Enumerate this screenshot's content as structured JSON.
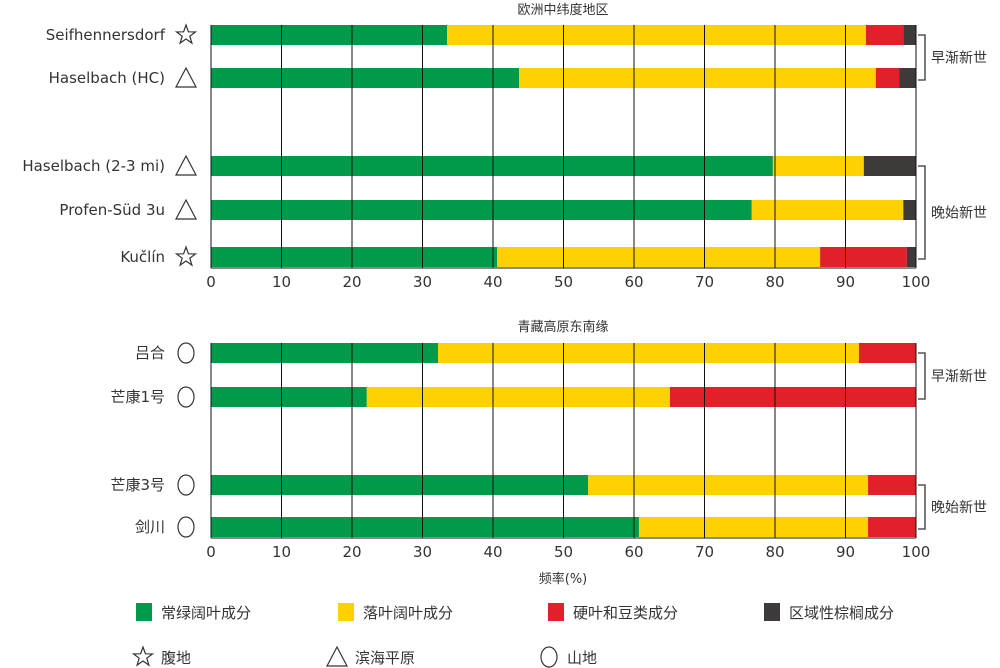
{
  "colors": {
    "evergreen": "#009a4a",
    "deciduous": "#ffd100",
    "sclerophyll": "#e3202a",
    "palm": "#3e3a39"
  },
  "chart_data": [
    {
      "type": "bar",
      "orientation": "horizontal",
      "stacked": true,
      "title": "欧洲中纬度地区",
      "xlim": [
        0,
        100
      ],
      "xticks": [
        "0",
        "10",
        "20",
        "30",
        "40",
        "50",
        "60",
        "70",
        "80",
        "90",
        "100"
      ],
      "grid": true,
      "categories": [
        {
          "name": "Seifhennersdorf",
          "marker": "star"
        },
        {
          "name": "Haselbach (HC)",
          "marker": "triangle"
        },
        {
          "name": "Haselbach (2-3 mi)",
          "marker": "triangle"
        },
        {
          "name": "Profen-Süd 3u",
          "marker": "triangle"
        },
        {
          "name": "Kučlín",
          "marker": "star"
        }
      ],
      "series": [
        {
          "name": "常绿阔叶成分",
          "values": [
            33.5,
            43.7,
            79.7,
            76.7,
            40.6
          ]
        },
        {
          "name": "落叶阔叶成分",
          "values": [
            59.4,
            50.6,
            12.9,
            21.5,
            45.8
          ]
        },
        {
          "name": "硬叶和豆类成分",
          "values": [
            5.3,
            3.3,
            0,
            0,
            12.3
          ]
        },
        {
          "name": "区域性棕榈成分",
          "values": [
            1.8,
            2.4,
            7.4,
            1.8,
            1.3
          ]
        }
      ],
      "groups": [
        {
          "label": "早渐新世",
          "rows": [
            0,
            1
          ]
        },
        {
          "label": "晚始新世",
          "rows": [
            2,
            3,
            4
          ]
        }
      ]
    },
    {
      "type": "bar",
      "orientation": "horizontal",
      "stacked": true,
      "title": "青藏高原东南缘",
      "xlabel": "频率(%)",
      "xlim": [
        0,
        100
      ],
      "xticks": [
        "0",
        "10",
        "20",
        "30",
        "40",
        "50",
        "60",
        "70",
        "80",
        "90",
        "100"
      ],
      "grid": true,
      "categories": [
        {
          "name": "吕合",
          "marker": "circle"
        },
        {
          "name": "芒康1号",
          "marker": "circle"
        },
        {
          "name": "芒康3号",
          "marker": "circle"
        },
        {
          "name": "剑川",
          "marker": "circle"
        }
      ],
      "series": [
        {
          "name": "常绿阔叶成分",
          "values": [
            32.2,
            22.1,
            53.5,
            60.7
          ]
        },
        {
          "name": "落叶阔叶成分",
          "values": [
            59.7,
            43.0,
            39.7,
            32.5
          ]
        },
        {
          "name": "硬叶和豆类成分",
          "values": [
            8.1,
            34.9,
            6.8,
            6.8
          ]
        },
        {
          "name": "区域性棕榈成分",
          "values": [
            0,
            0,
            0,
            0
          ]
        }
      ],
      "groups": [
        {
          "label": "早渐新世",
          "rows": [
            0,
            1
          ]
        },
        {
          "label": "晚始新世",
          "rows": [
            2,
            3
          ]
        }
      ]
    }
  ],
  "legend": {
    "components": [
      "常绿阔叶成分",
      "落叶阔叶成分",
      "硬叶和豆类成分",
      "区域性棕榈成分"
    ],
    "markers": [
      {
        "symbol": "star",
        "label": "腹地"
      },
      {
        "symbol": "triangle",
        "label": "滨海平原"
      },
      {
        "symbol": "circle",
        "label": "山地"
      }
    ]
  }
}
